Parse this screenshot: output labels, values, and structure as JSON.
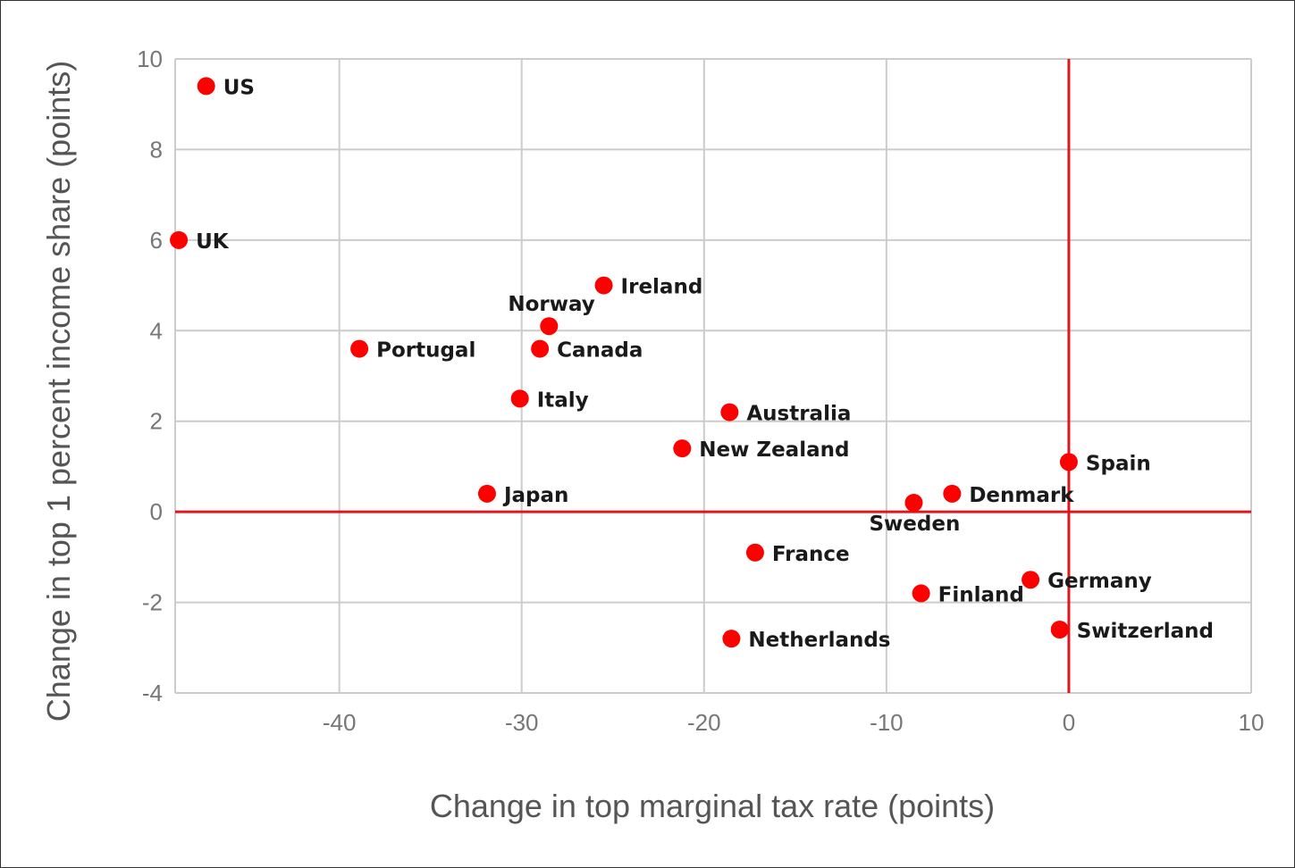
{
  "chart_data": {
    "type": "scatter",
    "xlabel": "Change in top marginal tax rate (points)",
    "ylabel": "Change in top 1 percent income share (points)",
    "xlim": [
      -49,
      10
    ],
    "ylim": [
      -4,
      10
    ],
    "xticks": [
      -40,
      -30,
      -20,
      -10,
      0,
      10
    ],
    "yticks": [
      -4,
      -2,
      0,
      2,
      4,
      6,
      8,
      10
    ],
    "grid": true,
    "point_color": "#ff0000",
    "reference_line_color": "#e0161e",
    "reference_lines": {
      "x": 0,
      "y": 0
    },
    "points": [
      {
        "label": "US",
        "x": -47.3,
        "y": 9.4
      },
      {
        "label": "UK",
        "x": -48.8,
        "y": 6.0
      },
      {
        "label": "Ireland",
        "x": -25.5,
        "y": 5.0
      },
      {
        "label": "Norway",
        "x": -28.5,
        "y": 4.1
      },
      {
        "label": "Portugal",
        "x": -38.9,
        "y": 3.6
      },
      {
        "label": "Canada",
        "x": -29.0,
        "y": 3.6
      },
      {
        "label": "Italy",
        "x": -30.1,
        "y": 2.5
      },
      {
        "label": "Australia",
        "x": -18.6,
        "y": 2.2
      },
      {
        "label": "New Zealand",
        "x": -21.2,
        "y": 1.4
      },
      {
        "label": "Spain",
        "x": 0.0,
        "y": 1.1
      },
      {
        "label": "Japan",
        "x": -31.9,
        "y": 0.4
      },
      {
        "label": "Denmark",
        "x": -6.4,
        "y": 0.4
      },
      {
        "label": "Sweden",
        "x": -8.5,
        "y": 0.2
      },
      {
        "label": "France",
        "x": -17.2,
        "y": -0.9
      },
      {
        "label": "Germany",
        "x": -2.1,
        "y": -1.5
      },
      {
        "label": "Finland",
        "x": -8.1,
        "y": -1.8
      },
      {
        "label": "Switzerland",
        "x": -0.5,
        "y": -2.6
      },
      {
        "label": "Netherlands",
        "x": -18.5,
        "y": -2.8
      }
    ]
  }
}
